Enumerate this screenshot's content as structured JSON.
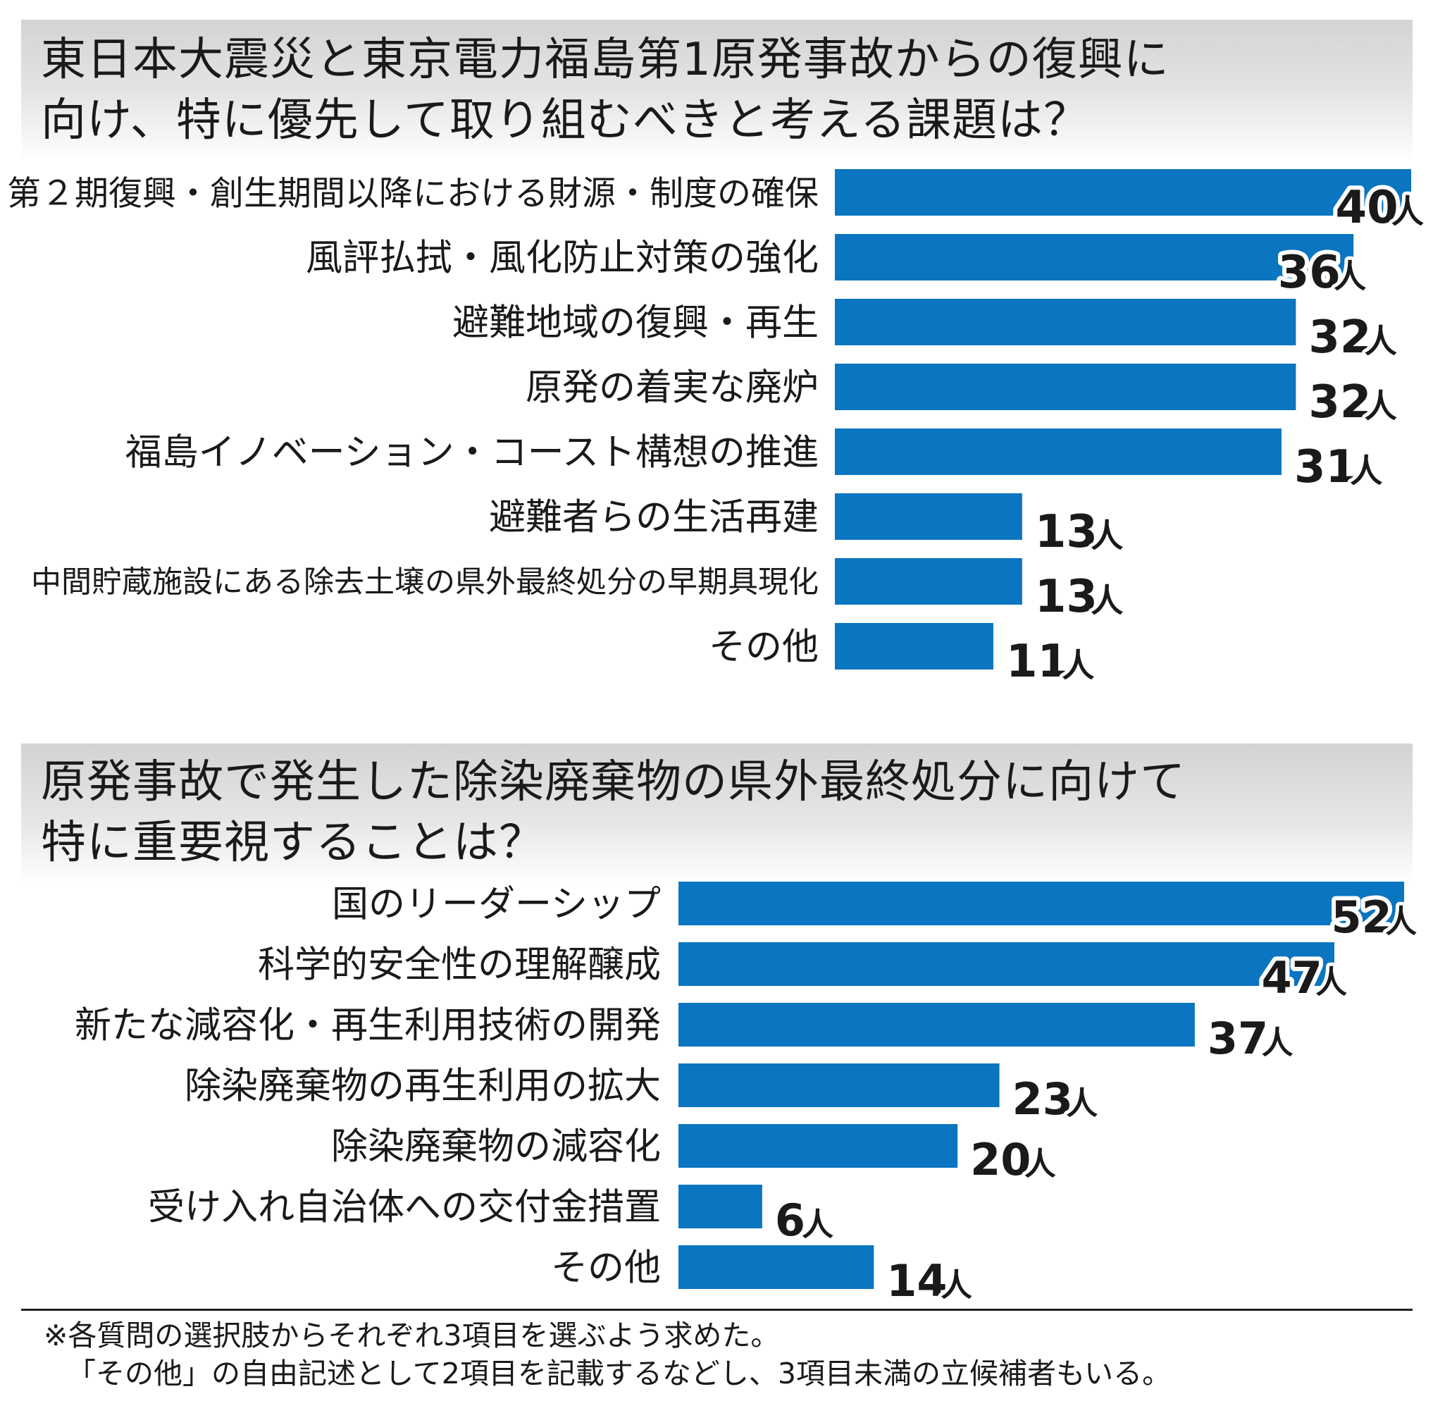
{
  "colors": {
    "bar": "#0a75c0",
    "header_bg": "#dcdcdc"
  },
  "chart_data": [
    {
      "type": "bar",
      "orientation": "horizontal",
      "title": "東日本大震災と東京電力福島第1原発事故からの復興に\n向け、特に優先して取り組むべきと考える課題は？",
      "unit": "人",
      "categories": [
        "第２期復興・創生期間以降における財源・制度の確保",
        "風評払拭・風化防止対策の強化",
        "避難地域の復興・再生",
        "原発の着実な廃炉",
        "福島イノベーション・コースト構想の推進",
        "避難者らの生活再建",
        "中間貯蔵施設にある除去土壌の県外最終処分の早期具現化",
        "その他"
      ],
      "values": [
        40,
        36,
        32,
        32,
        31,
        13,
        13,
        11
      ]
    },
    {
      "type": "bar",
      "orientation": "horizontal",
      "title": "原発事故で発生した除染廃棄物の県外最終処分に向けて\n特に重要視することは？",
      "unit": "人",
      "categories": [
        "国のリーダーシップ",
        "科学的安全性の理解醸成",
        "新たな減容化・再生利用技術の開発",
        "除染廃棄物の再生利用の拡大",
        "除染廃棄物の減容化",
        "受け入れ自治体への交付金措置",
        "その他"
      ],
      "values": [
        52,
        47,
        37,
        23,
        20,
        6,
        14
      ]
    }
  ],
  "footnote": {
    "line1": "※各質問の選択肢からそれぞれ3項目を選ぶよう求めた。",
    "line2": "「その他」の自由記述として2項目を記載するなどし、3項目未満の立候補者もいる。"
  }
}
